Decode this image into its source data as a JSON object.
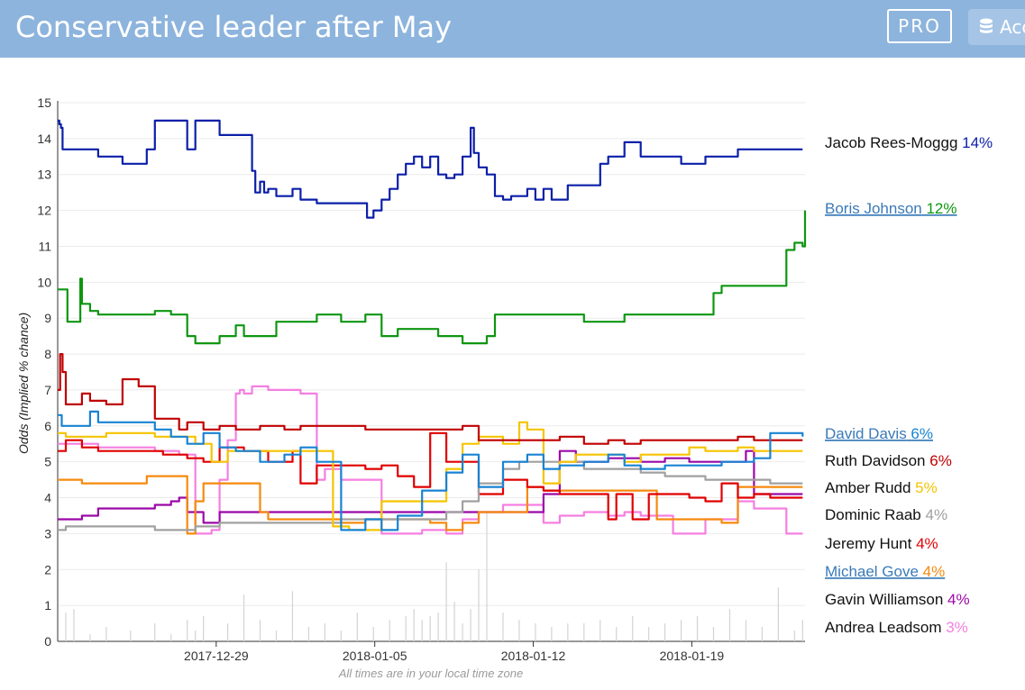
{
  "header": {
    "title": "Conservative leader after May",
    "pro_label": "PRO",
    "account_label": "Acc",
    "account_icon": "database-icon",
    "background": "#8db4dd"
  },
  "chart_data": {
    "type": "line",
    "ylabel": "Odds (Implied % chance)",
    "ylim": [
      0,
      15
    ],
    "yticks": [
      0,
      1,
      2,
      3,
      4,
      5,
      6,
      7,
      8,
      9,
      10,
      11,
      12,
      13,
      14,
      15
    ],
    "xlim": [
      "2017-12-22",
      "2018-01-24"
    ],
    "xticks": [
      "2017-12-29",
      "2018-01-05",
      "2018-01-12",
      "2018-01-19"
    ],
    "footnote": "All times are in your local time zone",
    "grid": "horizontal",
    "legend_placement": "right",
    "series": [
      {
        "name": "Jacob Rees-Moggg",
        "pct": "14%",
        "color": "#0b1fa8",
        "link": false,
        "x": [
          0,
          0.2,
          0.4,
          0.6,
          3,
          5,
          6,
          8,
          9,
          11,
          12,
          16,
          17,
          20,
          21,
          22,
          23,
          23.3,
          24,
          24.4,
          25,
          25.5,
          26,
          27,
          28,
          29,
          30,
          31,
          32,
          33,
          34,
          35,
          36,
          37,
          38,
          38.2,
          39,
          40,
          41,
          42,
          43,
          44,
          45,
          46,
          47,
          48,
          49,
          50,
          51,
          51.4,
          52,
          53,
          54,
          55,
          56,
          57,
          58,
          59,
          60,
          61,
          62,
          63,
          64,
          65,
          66,
          67,
          68,
          69,
          70,
          71,
          72,
          73,
          74,
          75,
          76,
          77,
          78,
          79,
          80,
          81,
          82,
          83,
          84,
          85,
          86,
          87,
          88,
          89,
          90,
          91,
          92
        ],
        "y": [
          14.5,
          14.4,
          14.3,
          13.7,
          13.7,
          13.5,
          13.5,
          13.3,
          13.3,
          13.7,
          14.5,
          13.7,
          14.5,
          14.1,
          14.1,
          14.1,
          14.1,
          14.1,
          13.1,
          12.5,
          12.8,
          12.5,
          12.6,
          12.4,
          12.4,
          12.6,
          12.3,
          12.3,
          12.2,
          12.2,
          12.2,
          12.2,
          12.2,
          12.2,
          12.2,
          11.8,
          12.0,
          12.3,
          12.6,
          13.0,
          13.3,
          13.5,
          13.2,
          13.5,
          13.0,
          12.9,
          13.0,
          13.5,
          14.3,
          13.6,
          13.2,
          13.0,
          12.4,
          12.3,
          12.4,
          12.4,
          12.6,
          12.3,
          12.6,
          12.3,
          12.3,
          12.7,
          12.7,
          12.7,
          12.7,
          13.3,
          13.5,
          13.5,
          13.9,
          13.9,
          13.5,
          13.5,
          13.5,
          13.5,
          13.5,
          13.3,
          13.3,
          13.3,
          13.5,
          13.5,
          13.5,
          13.5,
          13.7,
          13.7,
          13.7,
          13.7,
          13.7,
          13.7,
          13.7,
          13.7,
          13.7
        ]
      },
      {
        "name": "Boris Johnson",
        "pct": "12%",
        "color": "#0e9610",
        "link": true,
        "x": [
          0,
          1,
          1.2,
          2,
          2.8,
          3,
          3.3,
          4,
          5,
          6,
          9,
          12,
          14,
          16,
          17,
          20,
          21,
          22,
          23,
          25,
          27,
          30,
          32,
          35,
          38,
          40,
          42,
          45,
          47,
          50,
          53,
          54,
          56,
          60,
          65,
          70,
          75,
          80,
          81,
          82,
          84,
          86,
          88,
          90,
          91,
          92,
          92.3
        ],
        "y": [
          9.8,
          9.8,
          8.9,
          8.9,
          10.1,
          9.4,
          9.4,
          9.2,
          9.1,
          9.1,
          9.1,
          9.2,
          9.1,
          8.5,
          8.3,
          8.5,
          8.5,
          8.8,
          8.5,
          8.5,
          8.9,
          8.9,
          9.1,
          8.9,
          9.1,
          8.5,
          8.7,
          8.7,
          8.5,
          8.3,
          8.5,
          9.1,
          9.1,
          9.1,
          8.9,
          9.1,
          9.1,
          9.1,
          9.7,
          9.9,
          9.9,
          9.9,
          9.9,
          10.9,
          11.1,
          11.0,
          12.0
        ]
      },
      {
        "name": "David Davis",
        "pct": "6%",
        "color": "#1883d3",
        "link": true,
        "x": [
          0,
          0.5,
          1,
          4,
          5,
          6,
          8,
          10,
          12,
          14,
          16,
          18,
          20,
          22,
          25,
          28,
          30,
          32,
          35,
          38,
          40,
          42,
          45,
          48,
          50,
          52,
          55,
          58,
          60,
          62,
          65,
          68,
          70,
          72,
          75,
          78,
          80,
          82,
          84,
          86,
          88,
          90,
          92
        ],
        "y": [
          6.3,
          6.0,
          6.0,
          6.4,
          6.1,
          6.1,
          6.1,
          6.1,
          5.9,
          5.7,
          5.5,
          5.8,
          5.4,
          5.3,
          5.0,
          5.2,
          5.4,
          5.0,
          3.1,
          3.4,
          3.1,
          3.5,
          4.2,
          4.7,
          5.2,
          4.3,
          5.0,
          5.2,
          4.8,
          4.9,
          5.0,
          5.2,
          4.9,
          4.8,
          4.9,
          4.9,
          4.9,
          5.0,
          5.0,
          5.1,
          5.8,
          5.8,
          5.7
        ]
      },
      {
        "name": "Ruth Davidson",
        "pct": "6%",
        "color": "#c00000",
        "link": false,
        "x": [
          0,
          0.3,
          0.6,
          1,
          2,
          3,
          4,
          6,
          8,
          10,
          12,
          14,
          15,
          16,
          17,
          18,
          20,
          22,
          25,
          28,
          30,
          32,
          35,
          38,
          40,
          42,
          45,
          48,
          50,
          52,
          55,
          58,
          60,
          62,
          65,
          68,
          70,
          72,
          75,
          78,
          80,
          82,
          84,
          86,
          88,
          90,
          92
        ],
        "y": [
          7.0,
          8.0,
          7.5,
          6.6,
          6.6,
          6.9,
          6.7,
          6.6,
          7.3,
          7.1,
          6.2,
          6.2,
          5.9,
          6.1,
          6.1,
          5.9,
          6.0,
          5.9,
          6.0,
          5.9,
          6.0,
          6.0,
          6.0,
          5.9,
          5.9,
          5.9,
          5.9,
          5.9,
          6.0,
          5.6,
          5.6,
          5.6,
          5.6,
          5.7,
          5.5,
          5.6,
          5.5,
          5.6,
          5.6,
          5.6,
          5.6,
          5.6,
          5.7,
          5.6,
          5.6,
          5.6,
          5.6
        ]
      },
      {
        "name": "Amber Rudd",
        "pct": "5%",
        "color": "#f5c400",
        "link": false,
        "x": [
          0,
          1,
          4,
          6,
          9,
          12,
          15,
          17,
          19,
          21,
          24,
          27,
          30,
          33,
          34,
          36,
          40,
          45,
          48,
          50,
          52,
          55,
          57,
          58,
          60,
          62,
          64,
          66,
          68,
          70,
          72,
          75,
          78,
          80,
          82,
          84,
          86,
          88,
          90,
          92
        ],
        "y": [
          5.8,
          5.7,
          5.7,
          5.8,
          5.8,
          5.7,
          5.7,
          5.5,
          5.0,
          5.3,
          5.3,
          5.3,
          5.3,
          5.3,
          3.2,
          3.1,
          3.9,
          3.9,
          4.8,
          5.5,
          5.7,
          5.5,
          6.1,
          5.9,
          4.4,
          5.0,
          5.2,
          5.2,
          5.2,
          5.0,
          5.2,
          5.2,
          5.4,
          5.3,
          5.3,
          5.4,
          5.3,
          5.3,
          5.3,
          5.3
        ]
      },
      {
        "name": "Dominic Raab",
        "pct": "4%",
        "color": "#a0a0a0",
        "link": false,
        "x": [
          0,
          1,
          3,
          5,
          8,
          10,
          12,
          14,
          17,
          20,
          25,
          30,
          35,
          40,
          45,
          48,
          50,
          52,
          55,
          57,
          60,
          62,
          65,
          68,
          70,
          72,
          75,
          78,
          80,
          82,
          84,
          86,
          88,
          90,
          92
        ],
        "y": [
          3.1,
          3.2,
          3.2,
          3.2,
          3.2,
          3.2,
          3.1,
          3.1,
          3.2,
          3.3,
          3.3,
          3.3,
          3.4,
          3.4,
          3.4,
          3.6,
          3.9,
          4.4,
          4.8,
          5.0,
          5.0,
          5.0,
          4.8,
          4.8,
          4.8,
          4.7,
          4.6,
          4.6,
          4.5,
          4.5,
          4.5,
          4.5,
          4.4,
          4.4,
          4.4
        ]
      },
      {
        "name": "Jeremy Hunt",
        "pct": "4%",
        "color": "#e00000",
        "link": false,
        "x": [
          0,
          1,
          3,
          5,
          8,
          10,
          13,
          16,
          18,
          20,
          23,
          26,
          29,
          30,
          32,
          35,
          38,
          40,
          42,
          44,
          46,
          48,
          50,
          52,
          55,
          58,
          60,
          62,
          65,
          68,
          69,
          71,
          73,
          75,
          78,
          80,
          82,
          84,
          86,
          88,
          90,
          92
        ],
        "y": [
          5.3,
          5.6,
          5.4,
          5.3,
          5.3,
          5.3,
          5.2,
          5.1,
          5.0,
          5.4,
          5.3,
          5.0,
          5.3,
          4.4,
          4.9,
          4.9,
          4.8,
          4.9,
          4.6,
          4.3,
          5.8,
          5.0,
          5.0,
          4.1,
          4.5,
          4.3,
          4.2,
          4.1,
          4.1,
          3.4,
          4.1,
          3.4,
          4.1,
          4.1,
          4.0,
          3.9,
          4.4,
          4.0,
          4.1,
          4.0,
          4.0,
          4.0
        ]
      },
      {
        "name": "Michael Gove",
        "pct": "4%",
        "color": "#f58a0e",
        "link": true,
        "x": [
          0,
          1,
          3,
          5,
          8,
          11,
          13,
          15,
          16,
          17,
          18,
          21,
          23,
          25,
          26,
          28,
          30,
          32,
          35,
          38,
          40,
          42,
          44,
          46,
          48,
          50,
          52,
          54,
          56,
          58,
          60,
          62,
          64,
          66,
          68,
          70,
          72,
          74,
          76,
          78,
          80,
          82,
          84,
          86,
          88,
          90,
          92
        ],
        "y": [
          4.5,
          4.5,
          4.4,
          4.4,
          4.4,
          4.6,
          4.6,
          4.6,
          3.0,
          3.9,
          4.4,
          4.4,
          4.4,
          3.6,
          3.4,
          3.4,
          3.4,
          3.4,
          3.3,
          3.4,
          3.4,
          3.4,
          3.4,
          3.3,
          3.1,
          3.3,
          3.6,
          3.6,
          3.6,
          4.3,
          4.2,
          4.2,
          4.2,
          4.2,
          4.2,
          4.2,
          4.2,
          3.4,
          3.4,
          3.4,
          3.4,
          3.3,
          4.3,
          4.3,
          4.3,
          4.3,
          4.3
        ]
      },
      {
        "name": "Gavin Williamson",
        "pct": "4%",
        "color": "#9b08a8",
        "link": false,
        "x": [
          0,
          1,
          3,
          5,
          8,
          10,
          12,
          14,
          15,
          16,
          18,
          20,
          23,
          26,
          28,
          30,
          35,
          40,
          45,
          50,
          55,
          60,
          62,
          64,
          66,
          68,
          70,
          72,
          75,
          78,
          80,
          82,
          84,
          85,
          86,
          88,
          90,
          92
        ],
        "y": [
          3.4,
          3.4,
          3.5,
          3.7,
          3.7,
          3.7,
          3.8,
          3.9,
          4.0,
          3.6,
          3.3,
          3.6,
          3.6,
          3.6,
          3.6,
          3.6,
          3.6,
          3.6,
          3.6,
          3.6,
          3.6,
          4.1,
          5.3,
          5.0,
          5.0,
          5.1,
          5.1,
          5.0,
          5.1,
          5.0,
          5.0,
          5.0,
          5.0,
          5.3,
          4.1,
          4.1,
          4.1,
          4.1
        ]
      },
      {
        "name": "Andrea Leadsom",
        "pct": "3%",
        "color": "#f57fe0",
        "link": false,
        "x": [
          0,
          2,
          5,
          8,
          12,
          15,
          17,
          18,
          19,
          20,
          21,
          22,
          22.5,
          23,
          24,
          26,
          27,
          28,
          30,
          32,
          33,
          35,
          40,
          45,
          48,
          50,
          52,
          55,
          60,
          62,
          65,
          68,
          70,
          72,
          75,
          76,
          78,
          80,
          82,
          84,
          85,
          86,
          88,
          90,
          92
        ],
        "y": [
          5.5,
          5.5,
          5.4,
          5.4,
          5.3,
          5.2,
          3.0,
          3.0,
          3.1,
          4.5,
          5.6,
          6.9,
          7.0,
          6.9,
          7.1,
          7.0,
          7.0,
          7.0,
          6.9,
          4.5,
          4.8,
          4.5,
          3.0,
          3.1,
          3.0,
          3.4,
          3.6,
          3.8,
          3.3,
          3.5,
          3.6,
          3.5,
          3.6,
          3.5,
          3.5,
          3.0,
          3.0,
          3.4,
          3.4,
          3.9,
          3.9,
          3.7,
          3.7,
          3.0,
          3.0
        ]
      }
    ],
    "volume": {
      "x": [
        1,
        2,
        4,
        6,
        9,
        12,
        14,
        16,
        17,
        18,
        21,
        23,
        25,
        27,
        29,
        31,
        33,
        35,
        37,
        39,
        41,
        43,
        44,
        45,
        46,
        47,
        48,
        49,
        50,
        51,
        52,
        53,
        55,
        57,
        59,
        61,
        63,
        65,
        67,
        69,
        71,
        73,
        75,
        77,
        79,
        81,
        83,
        85,
        87,
        89,
        91,
        92
      ],
      "y": [
        0.8,
        0.9,
        0.2,
        0.4,
        0.3,
        0.5,
        0.2,
        0.6,
        0.3,
        0.7,
        0.5,
        1.3,
        0.6,
        0.3,
        1.4,
        0.4,
        0.5,
        0.3,
        0.8,
        0.4,
        0.6,
        0.7,
        0.9,
        0.6,
        0.7,
        0.8,
        2.2,
        1.1,
        0.5,
        0.9,
        2.0,
        3.6,
        0.8,
        0.6,
        0.5,
        0.4,
        0.5,
        0.5,
        0.6,
        0.4,
        0.7,
        0.4,
        0.5,
        0.6,
        0.7,
        0.4,
        0.9,
        0.6,
        0.4,
        1.5,
        0.3,
        0.6
      ]
    }
  }
}
